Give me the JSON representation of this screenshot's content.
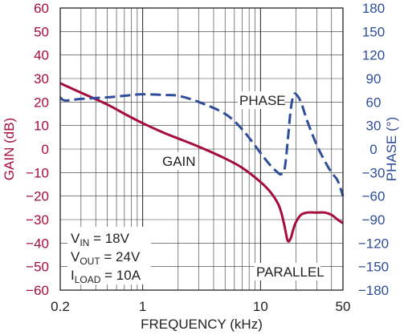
{
  "chart_data": {
    "type": "line",
    "xlabel": "FREQUENCY (kHz)",
    "ylabel_left": "GAIN (dB)",
    "ylabel_right": "PHASE (°)",
    "x_scale": "log",
    "xlim": [
      0.2,
      50
    ],
    "ylim_left": [
      -60,
      60
    ],
    "ylim_right": [
      -180,
      180
    ],
    "x_ticks": [
      {
        "value": 0.2,
        "label": "0.2"
      },
      {
        "value": 1,
        "label": "1"
      },
      {
        "value": 10,
        "label": "10"
      },
      {
        "value": 50,
        "label": "50"
      }
    ],
    "y_ticks_left": [
      "60",
      "50",
      "40",
      "30",
      "20",
      "10",
      "0",
      "−10",
      "−20",
      "−30",
      "−40",
      "−50",
      "−60"
    ],
    "y_ticks_right": [
      "180",
      "150",
      "120",
      "90",
      "60",
      "30",
      "0",
      "−30",
      "−60",
      "−90",
      "−120",
      "−150",
      "−180"
    ],
    "grid": true,
    "series": [
      {
        "name": "GAIN",
        "axis": "left",
        "color": "#a50d3a",
        "style": "solid",
        "x": [
          0.2,
          0.3,
          0.5,
          0.7,
          1,
          1.5,
          2,
          3,
          5,
          7,
          10,
          12,
          14,
          15,
          16,
          17,
          18,
          19,
          20,
          22,
          25,
          30,
          35,
          40,
          45,
          50
        ],
        "y": [
          28,
          24,
          19,
          15,
          11,
          7,
          4.5,
          1,
          -4,
          -8,
          -14,
          -18,
          -23,
          -27,
          -33,
          -39,
          -38,
          -34,
          -31,
          -28,
          -27,
          -27,
          -27,
          -28,
          -30,
          -31.5
        ]
      },
      {
        "name": "PHASE",
        "axis": "right",
        "color": "#2e4d9a",
        "style": "dashed",
        "x": [
          0.2,
          0.22,
          0.3,
          0.5,
          0.7,
          1,
          1.5,
          2,
          3,
          5,
          7,
          10,
          12,
          14,
          15,
          16,
          17,
          18,
          19,
          20,
          22,
          25,
          30,
          35,
          40,
          45,
          50
        ],
        "y": [
          66,
          62,
          64,
          66,
          68,
          70,
          69,
          68,
          60,
          45,
          25,
          -5,
          -20,
          -30,
          -32,
          -25,
          10,
          50,
          68,
          70,
          60,
          35,
          5,
          -15,
          -30,
          -40,
          -60
        ]
      }
    ],
    "annotations": {
      "gain_label": "GAIN",
      "phase_label": "PHASE",
      "parallel_label": "PARALLEL",
      "vin_main": "V",
      "vin_sub": "IN",
      "vin_val": " = 18V",
      "vout_main": "V",
      "vout_sub": "OUT",
      "vout_val": " = 24V",
      "iload_main": "I",
      "iload_sub": "LOAD",
      "iload_val": " = 10A"
    }
  }
}
